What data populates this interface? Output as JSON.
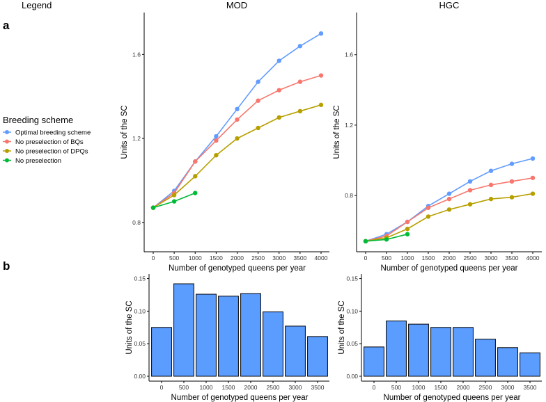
{
  "panel_labels": {
    "a": "a",
    "b": "b"
  },
  "legend": {
    "heading": "Legend",
    "title": "Breeding scheme",
    "items": [
      {
        "label": "Optimal breeding scheme",
        "color": "#619CFF"
      },
      {
        "label": "No preselection of BQs",
        "color": "#F8766D"
      },
      {
        "label": "No preselection of DPQs",
        "color": "#B79F00"
      },
      {
        "label": "No preselection",
        "color": "#00BA38"
      }
    ]
  },
  "chart_data": [
    {
      "id": "mod_line",
      "type": "line",
      "title": "MOD",
      "xlabel": "Number of genotyped queens per year",
      "ylabel": "Units of the SC",
      "x_ticks": [
        "0",
        "500",
        "1000",
        "1500",
        "2000",
        "2500",
        "3000",
        "3500",
        "4000"
      ],
      "y_ticks": [
        "0.8",
        "1.2",
        "1.6"
      ],
      "ylim": [
        0.66,
        1.8
      ],
      "series": [
        {
          "name": "Optimal breeding scheme",
          "color": "#619CFF",
          "x": [
            0,
            500,
            1000,
            1500,
            2000,
            2500,
            3000,
            3500,
            4000
          ],
          "y": [
            0.87,
            0.95,
            1.09,
            1.21,
            1.34,
            1.47,
            1.57,
            1.64,
            1.7
          ]
        },
        {
          "name": "No preselection of BQs",
          "color": "#F8766D",
          "x": [
            0,
            500,
            1000,
            1500,
            2000,
            2500,
            3000,
            3500,
            4000
          ],
          "y": [
            0.87,
            0.94,
            1.09,
            1.19,
            1.29,
            1.38,
            1.43,
            1.47,
            1.5
          ]
        },
        {
          "name": "No preselection of DPQs",
          "color": "#B79F00",
          "x": [
            0,
            500,
            1000,
            1500,
            2000,
            2500,
            3000,
            3500,
            4000
          ],
          "y": [
            0.87,
            0.93,
            1.02,
            1.12,
            1.2,
            1.25,
            1.3,
            1.33,
            1.36
          ]
        },
        {
          "name": "No preselection",
          "color": "#00BA38",
          "x": [
            0,
            500,
            1000
          ],
          "y": [
            0.87,
            0.9,
            0.94
          ]
        }
      ]
    },
    {
      "id": "hgc_line",
      "type": "line",
      "title": "HGC",
      "xlabel": "Number of genotyped queens per year",
      "ylabel": "Units of the SC",
      "x_ticks": [
        "0",
        "500",
        "1000",
        "1500",
        "2000",
        "2500",
        "3000",
        "3500",
        "4000"
      ],
      "y_ticks": [
        "0.8",
        "1.2",
        "1.6"
      ],
      "ylim": [
        0.48,
        1.84
      ],
      "series": [
        {
          "name": "Optimal breeding scheme",
          "color": "#619CFF",
          "x": [
            0,
            500,
            1000,
            1500,
            2000,
            2500,
            3000,
            3500,
            4000
          ],
          "y": [
            0.54,
            0.58,
            0.65,
            0.74,
            0.81,
            0.88,
            0.94,
            0.98,
            1.01
          ]
        },
        {
          "name": "No preselection of BQs",
          "color": "#F8766D",
          "x": [
            0,
            500,
            1000,
            1500,
            2000,
            2500,
            3000,
            3500,
            4000
          ],
          "y": [
            0.54,
            0.57,
            0.65,
            0.73,
            0.78,
            0.83,
            0.86,
            0.88,
            0.9
          ]
        },
        {
          "name": "No preselection of DPQs",
          "color": "#B79F00",
          "x": [
            0,
            500,
            1000,
            1500,
            2000,
            2500,
            3000,
            3500,
            4000
          ],
          "y": [
            0.54,
            0.56,
            0.61,
            0.68,
            0.72,
            0.75,
            0.78,
            0.79,
            0.81
          ]
        },
        {
          "name": "No preselection",
          "color": "#00BA38",
          "x": [
            0,
            500,
            1000
          ],
          "y": [
            0.54,
            0.55,
            0.58
          ]
        }
      ]
    },
    {
      "id": "mod_bar",
      "type": "bar",
      "title": "",
      "xlabel": "Number of genotyped queens per year",
      "ylabel": "Units of the SC",
      "categories": [
        "0",
        "500",
        "1000",
        "1500",
        "2000",
        "2500",
        "3000",
        "3500"
      ],
      "values": [
        0.075,
        0.142,
        0.126,
        0.123,
        0.127,
        0.099,
        0.077,
        0.061
      ],
      "y_ticks": [
        "0.00",
        "0.05",
        "0.10",
        "0.15"
      ],
      "ylim": [
        -0.0075,
        0.157
      ],
      "bar_color": "#5B9CFF"
    },
    {
      "id": "hgc_bar",
      "type": "bar",
      "title": "",
      "xlabel": "Number of genotyped queens per year",
      "ylabel": "Units of the SC",
      "categories": [
        "0",
        "500",
        "1000",
        "1500",
        "2000",
        "2500",
        "3000",
        "3500"
      ],
      "values": [
        0.045,
        0.085,
        0.08,
        0.075,
        0.075,
        0.057,
        0.044,
        0.036
      ],
      "y_ticks": [
        "0.00",
        "0.05",
        "0.10",
        "0.15"
      ],
      "ylim": [
        -0.0075,
        0.157
      ],
      "bar_color": "#5B9CFF"
    }
  ]
}
